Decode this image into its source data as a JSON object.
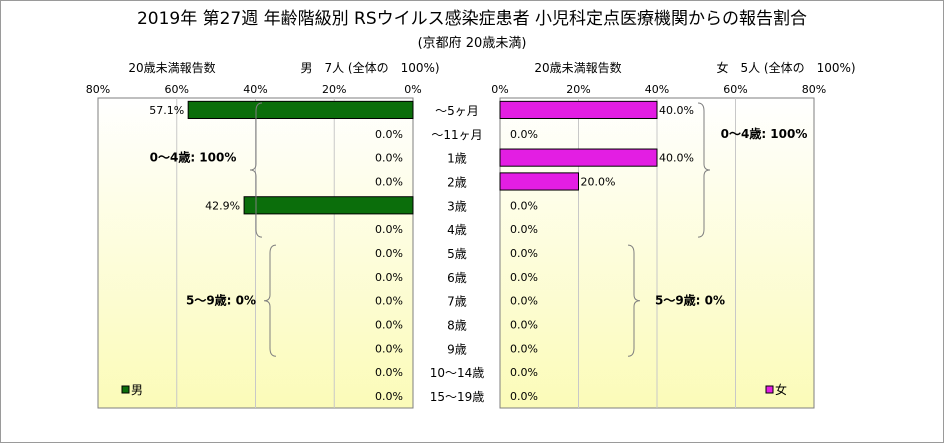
{
  "title": "2019年 第27週 年齢階級別 RSウイルス感染症患者 小児科定点医療機関からの報告割合",
  "subtitle": "(京都府 20歳未満)",
  "colors": {
    "male_bar": "#0b6e0b",
    "female_bar": "#e31ee3",
    "plot_bg_top": "#ffffff",
    "plot_bg_bottom": "#fbfbb8"
  },
  "chart_data": [
    {
      "type": "bar",
      "orientation": "horizontal",
      "side": "left",
      "header_left": "20歳未満報告数",
      "header_right": "男　7人 (全体の　100%)",
      "legend": "男",
      "xlim": [
        0,
        80
      ],
      "x_ticks": [
        "80%",
        "60%",
        "40%",
        "20%",
        "0%"
      ],
      "categories": [
        "～5ヶ月",
        "～11ヶ月",
        "1歳",
        "2歳",
        "3歳",
        "4歳",
        "5歳",
        "6歳",
        "7歳",
        "8歳",
        "9歳",
        "10～14歳",
        "15～19歳"
      ],
      "values": [
        57.1,
        0,
        0,
        0,
        42.9,
        0,
        0,
        0,
        0,
        0,
        0,
        0,
        0
      ],
      "labels": [
        "57.1%",
        "0.0%",
        "0.0%",
        "0.0%",
        "42.9%",
        "0.0%",
        "0.0%",
        "0.0%",
        "0.0%",
        "0.0%",
        "0.0%",
        "0.0%",
        "0.0%"
      ],
      "annotations": [
        "0～4歳: 100%",
        "5～9歳: 0%"
      ]
    },
    {
      "type": "bar",
      "orientation": "horizontal",
      "side": "right",
      "header_left": "20歳未満報告数",
      "header_right": "女　5人 (全体の　100%)",
      "legend": "女",
      "xlim": [
        0,
        80
      ],
      "x_ticks": [
        "0%",
        "20%",
        "40%",
        "60%",
        "80%"
      ],
      "categories": [
        "～5ヶ月",
        "～11ヶ月",
        "1歳",
        "2歳",
        "3歳",
        "4歳",
        "5歳",
        "6歳",
        "7歳",
        "8歳",
        "9歳",
        "10～14歳",
        "15～19歳"
      ],
      "values": [
        40,
        0,
        40,
        20,
        0,
        0,
        0,
        0,
        0,
        0,
        0,
        0,
        0
      ],
      "labels": [
        "40.0%",
        "0.0%",
        "40.0%",
        "20.0%",
        "0.0%",
        "0.0%",
        "0.0%",
        "0.0%",
        "0.0%",
        "0.0%",
        "0.0%",
        "0.0%",
        "0.0%"
      ],
      "annotations": [
        "0～4歳: 100%",
        "5～9歳: 0%"
      ]
    }
  ]
}
